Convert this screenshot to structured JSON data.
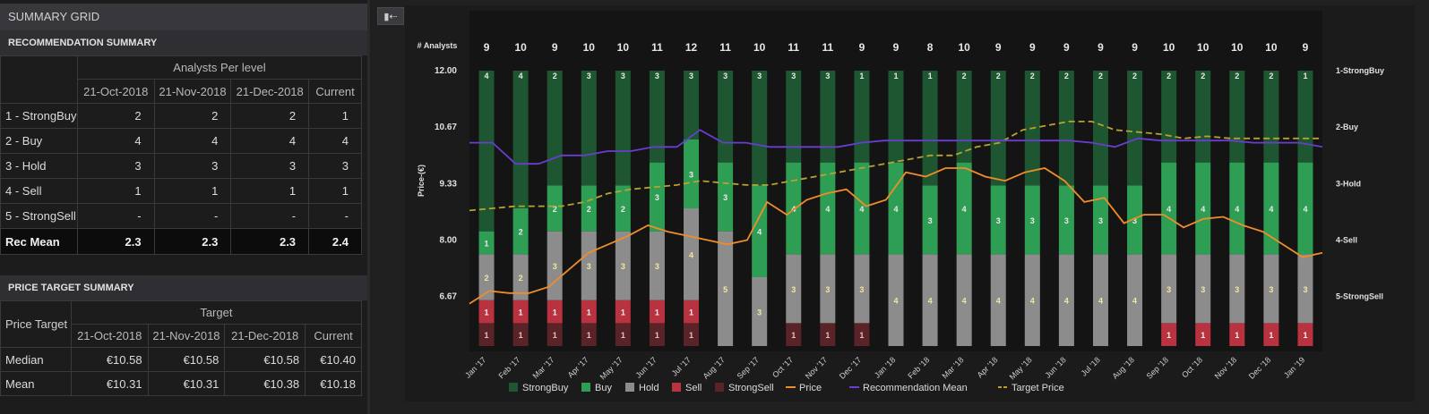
{
  "summary": {
    "title": "SUMMARY GRID",
    "rec_title": "RECOMMENDATION SUMMARY",
    "analysts_per_level": "Analysts Per level",
    "rec_cols": [
      "21-Oct-2018",
      "21-Nov-2018",
      "21-Dec-2018",
      "Current"
    ],
    "rec_rows": [
      {
        "label": "1 - StrongBuy",
        "values": [
          "2",
          "2",
          "2",
          "1"
        ]
      },
      {
        "label": "2 - Buy",
        "values": [
          "4",
          "4",
          "4",
          "4"
        ]
      },
      {
        "label": "3 - Hold",
        "values": [
          "3",
          "3",
          "3",
          "3"
        ]
      },
      {
        "label": "4 - Sell",
        "values": [
          "1",
          "1",
          "1",
          "1"
        ]
      },
      {
        "label": "5 - StrongSell",
        "values": [
          "-",
          "-",
          "-",
          "-"
        ]
      }
    ],
    "rec_mean": {
      "label": "Rec Mean",
      "values": [
        "2.3",
        "2.3",
        "2.3",
        "2.4"
      ]
    },
    "pt_title": "PRICE TARGET SUMMARY",
    "pt_label": "Price Target",
    "pt_group": "Target",
    "pt_cols": [
      "21-Oct-2018",
      "21-Nov-2018",
      "21-Dec-2018",
      "Current"
    ],
    "pt_rows": [
      {
        "label": "Median",
        "values": [
          "€10.58",
          "€10.58",
          "€10.58",
          "€10.40"
        ]
      },
      {
        "label": "Mean",
        "values": [
          "€10.31",
          "€10.31",
          "€10.38",
          "€10.18"
        ]
      }
    ]
  },
  "toolbar": {
    "collapse_icon": "collapse-panel-icon",
    "collapse_glyph": "▮⇠"
  },
  "colors": {
    "strongbuy": "#1e5631",
    "buy": "#2f9e55",
    "hold": "#8c8c8c",
    "sell": "#b8333f",
    "strongsell": "#5a2328",
    "price": "#f08c2a",
    "recmean": "#6a3ccf",
    "target": "#b8a22e"
  },
  "chart_data": {
    "type": "bar",
    "analysts_label": "# Analysts",
    "ylabel": "Price-(€)",
    "yticks": [
      "12.00",
      "10.67",
      "9.33",
      "8.00",
      "6.67"
    ],
    "ylim": [
      5.5,
      12.0
    ],
    "right_ticks": [
      "1-StrongBuy",
      "2-Buy",
      "3-Hold",
      "4-Sell",
      "5-StrongSell"
    ],
    "categories": [
      "Jan '17",
      "Feb '17",
      "Mar '17",
      "Apr '17",
      "May '17",
      "Jun '17",
      "Jul '17",
      "Aug '17",
      "Sep '17",
      "Oct '17",
      "Nov '17",
      "Dec '17",
      "Jan '18",
      "Feb '18",
      "Mar '18",
      "Apr '18",
      "May '18",
      "Jun '18",
      "Jul '18",
      "Aug '18",
      "Sep '18",
      "Oct '18",
      "Nov '18",
      "Dec '18",
      "Jan '19"
    ],
    "analyst_counts": [
      9,
      10,
      9,
      10,
      10,
      11,
      12,
      11,
      10,
      11,
      11,
      9,
      9,
      8,
      10,
      9,
      9,
      9,
      9,
      9,
      10,
      10,
      10,
      10,
      9
    ],
    "series": [
      {
        "name": "StrongBuy",
        "values": [
          4,
          4,
          2,
          3,
          3,
          3,
          3,
          3,
          3,
          3,
          3,
          1,
          1,
          1,
          2,
          2,
          2,
          2,
          2,
          2,
          2,
          2,
          2,
          2,
          1
        ]
      },
      {
        "name": "Buy",
        "values": [
          1,
          2,
          2,
          2,
          2,
          3,
          3,
          3,
          4,
          4,
          4,
          4,
          4,
          3,
          4,
          3,
          3,
          3,
          3,
          3,
          4,
          4,
          4,
          4,
          4
        ]
      },
      {
        "name": "Hold",
        "values": [
          2,
          2,
          3,
          3,
          3,
          3,
          4,
          5,
          3,
          3,
          3,
          3,
          4,
          4,
          4,
          4,
          4,
          4,
          4,
          4,
          3,
          3,
          3,
          3,
          3
        ]
      },
      {
        "name": "Sell",
        "values": [
          1,
          1,
          1,
          1,
          1,
          1,
          1,
          0,
          0,
          0,
          0,
          0,
          0,
          0,
          0,
          0,
          0,
          0,
          0,
          0,
          1,
          1,
          1,
          1,
          1
        ]
      },
      {
        "name": "StrongSell",
        "values": [
          1,
          1,
          1,
          1,
          1,
          1,
          1,
          0,
          0,
          1,
          1,
          1,
          0,
          0,
          0,
          0,
          0,
          0,
          0,
          0,
          0,
          0,
          0,
          0,
          0
        ]
      }
    ],
    "hidden_labels": {
      "Sell": [
        7,
        8,
        9,
        10,
        11,
        12,
        13,
        14,
        15,
        16,
        17,
        18,
        19
      ],
      "StrongSell": [
        7,
        8,
        11,
        12,
        13,
        14,
        15,
        16,
        17,
        18,
        19,
        20,
        21,
        22,
        23,
        24
      ],
      "StrongBuy": []
    },
    "price_series": [
      6.5,
      6.8,
      6.75,
      6.75,
      6.9,
      7.3,
      7.7,
      7.9,
      8.1,
      8.35,
      8.2,
      8.1,
      8.0,
      7.9,
      8.0,
      8.9,
      8.6,
      8.95,
      9.1,
      9.2,
      8.8,
      8.95,
      9.6,
      9.5,
      9.7,
      9.7,
      9.5,
      9.4,
      9.6,
      9.7,
      9.4,
      8.9,
      9.0,
      8.4,
      8.6,
      8.6,
      8.3,
      8.5,
      8.55,
      8.35,
      8.2,
      7.9,
      7.6,
      7.7
    ],
    "recmean_series": [
      10.3,
      10.3,
      9.8,
      9.8,
      10.0,
      10.0,
      10.1,
      10.1,
      10.2,
      10.2,
      10.6,
      10.3,
      10.3,
      10.2,
      10.2,
      10.2,
      10.2,
      10.3,
      10.35,
      10.35,
      10.35,
      10.35,
      10.35,
      10.35,
      10.35,
      10.35,
      10.35,
      10.3,
      10.2,
      10.4,
      10.35,
      10.35,
      10.35,
      10.35,
      10.3,
      10.3,
      10.3,
      10.2
    ],
    "target_series": [
      8.7,
      8.75,
      8.8,
      8.8,
      8.8,
      8.9,
      9.1,
      9.2,
      9.25,
      9.3,
      9.4,
      9.35,
      9.3,
      9.3,
      9.4,
      9.5,
      9.6,
      9.7,
      9.8,
      9.9,
      10.0,
      10.0,
      10.2,
      10.3,
      10.6,
      10.7,
      10.8,
      10.8,
      10.6,
      10.55,
      10.5,
      10.4,
      10.45,
      10.4,
      10.4,
      10.4,
      10.4,
      10.4
    ],
    "legend": [
      {
        "name": "StrongBuy",
        "type": "box"
      },
      {
        "name": "Buy",
        "type": "box"
      },
      {
        "name": "Hold",
        "type": "box"
      },
      {
        "name": "Sell",
        "type": "box"
      },
      {
        "name": "StrongSell",
        "type": "box"
      },
      {
        "name": "Price",
        "type": "line"
      },
      {
        "name": "Recommendation Mean",
        "type": "line"
      },
      {
        "name": "Target Price",
        "type": "dash"
      }
    ]
  }
}
